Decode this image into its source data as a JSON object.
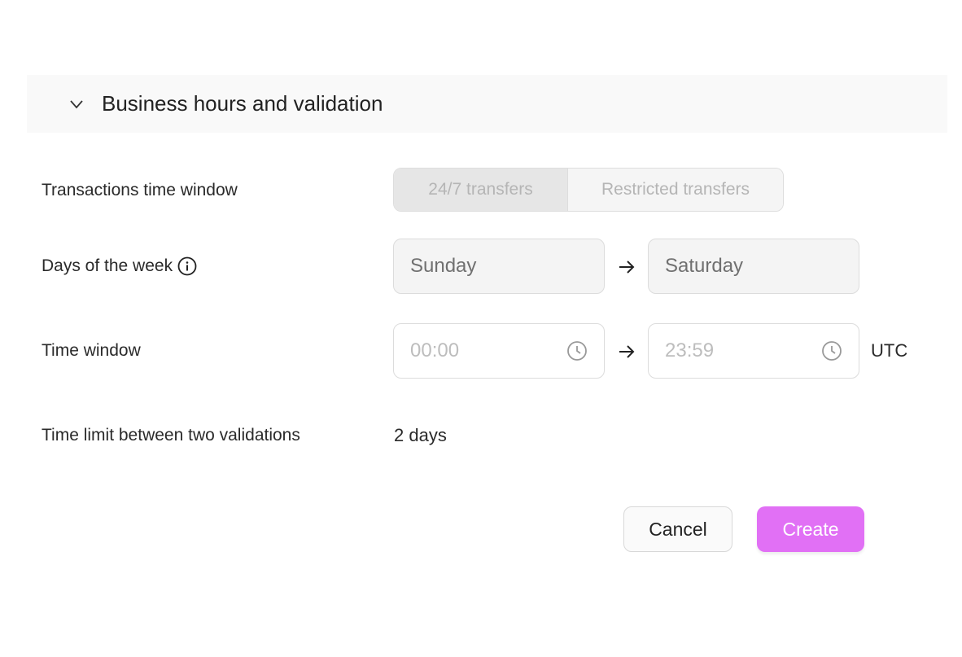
{
  "section": {
    "title": "Business hours and validation",
    "expanded": true
  },
  "transactions": {
    "label": "Transactions time window",
    "options": [
      "24/7 transfers",
      "Restricted transfers"
    ],
    "selected": "24/7 transfers"
  },
  "days": {
    "label": "Days of the week",
    "from": "Sunday",
    "to": "Saturday"
  },
  "time_window": {
    "label": "Time window",
    "from_placeholder": "00:00",
    "to_placeholder": "23:59",
    "timezone": "UTC"
  },
  "validation": {
    "label": "Time limit between two validations",
    "value": "2 days"
  },
  "actions": {
    "cancel": "Cancel",
    "create": "Create"
  },
  "colors": {
    "accent": "#e170f5"
  }
}
